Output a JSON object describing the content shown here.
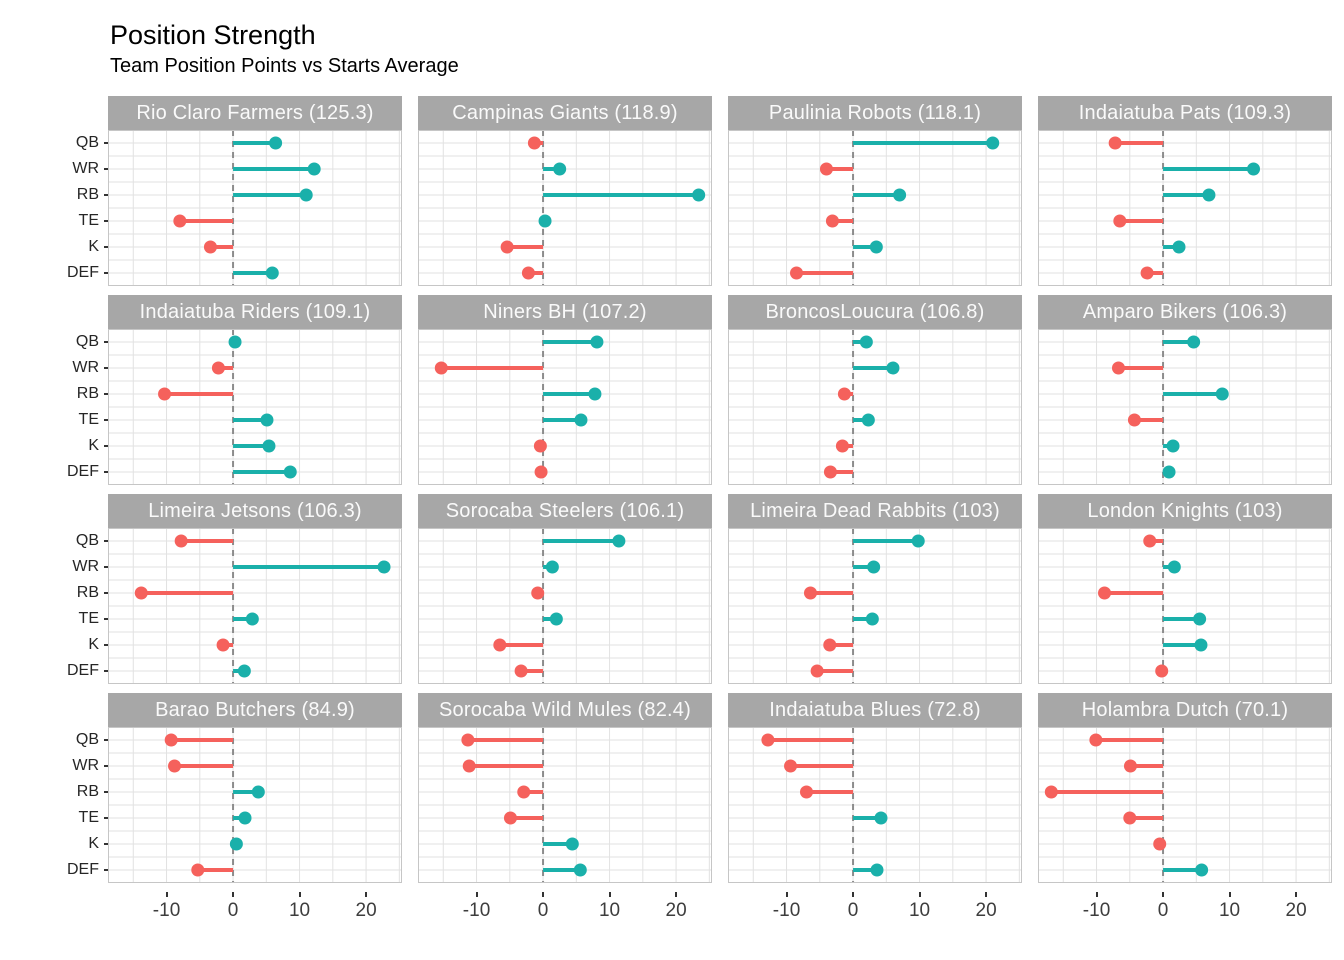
{
  "title": "Position Strength",
  "subtitle": "Team Position Points vs Starts Average",
  "colors": {
    "positive": "#1AB0AA",
    "negative": "#F5615C",
    "strip_bg": "#A7A7A7",
    "strip_text": "#FAFAFA",
    "grid": "#E2E2E2",
    "panel_border": "#C6C6C6",
    "zero_line": "#8C8C8C",
    "axis_text": "#3D3D3D"
  },
  "chart_data": {
    "type": "lollipop-facets",
    "title": "Position Strength",
    "subtitle": "Team Position Points vs Starts Average",
    "positions": [
      "QB",
      "WR",
      "RB",
      "TE",
      "K",
      "DEF"
    ],
    "x_ticks": [
      -10,
      0,
      10,
      20
    ],
    "x_tick_labels": [
      "-10",
      "0",
      "10",
      "20"
    ],
    "x_domain": [
      -18.8,
      25.4
    ],
    "grid": "on",
    "zero_reference_line": "dashed",
    "facets": [
      {
        "label": "Rio Claro Farmers (125.3)",
        "team": "Rio Claro Farmers",
        "total": 125.3,
        "values": [
          6.4,
          12.2,
          11.0,
          -8.0,
          -3.4,
          5.9
        ]
      },
      {
        "label": "Campinas Giants (118.9)",
        "team": "Campinas Giants",
        "total": 118.9,
        "values": [
          -1.3,
          2.5,
          23.4,
          0.3,
          -5.4,
          -2.2
        ]
      },
      {
        "label": "Paulinia Robots (118.1)",
        "team": "Paulinia Robots",
        "total": 118.1,
        "values": [
          21.0,
          -4.0,
          7.0,
          -3.1,
          3.5,
          -8.5
        ]
      },
      {
        "label": "Indaiatuba Pats (109.3)",
        "team": "Indaiatuba Pats",
        "total": 109.3,
        "values": [
          -7.2,
          13.6,
          6.9,
          -6.5,
          2.4,
          -2.4
        ]
      },
      {
        "label": "Indaiatuba Riders (109.1)",
        "team": "Indaiatuba Riders",
        "total": 109.1,
        "values": [
          0.3,
          -2.2,
          -10.3,
          5.1,
          5.4,
          8.6
        ]
      },
      {
        "label": "Niners BH (107.2)",
        "team": "Niners BH",
        "total": 107.2,
        "values": [
          8.1,
          -15.3,
          7.8,
          5.7,
          -0.4,
          -0.3
        ]
      },
      {
        "label": "BroncosLoucura (106.8)",
        "team": "BroncosLoucura",
        "total": 106.8,
        "values": [
          2.0,
          6.0,
          -1.3,
          2.3,
          -1.6,
          -3.4
        ]
      },
      {
        "label": "Amparo Bikers (106.3)",
        "team": "Amparo Bikers",
        "total": 106.3,
        "values": [
          4.6,
          -6.7,
          8.9,
          -4.3,
          1.5,
          0.9
        ]
      },
      {
        "label": "Limeira Jetsons (106.3)",
        "team": "Limeira Jetsons",
        "total": 106.3,
        "values": [
          -7.8,
          22.7,
          -13.8,
          2.9,
          -1.5,
          1.7
        ]
      },
      {
        "label": "Sorocaba Steelers (106.1)",
        "team": "Sorocaba Steelers",
        "total": 106.1,
        "values": [
          11.4,
          1.4,
          -0.8,
          2.0,
          -6.5,
          -3.3
        ]
      },
      {
        "label": "Limeira Dead Rabbits (103)",
        "team": "Limeira Dead Rabbits",
        "total": 103,
        "values": [
          9.8,
          3.1,
          -6.4,
          2.9,
          -3.5,
          -5.4
        ]
      },
      {
        "label": "London Knights (103)",
        "team": "London Knights",
        "total": 103,
        "values": [
          -2.0,
          1.7,
          -8.8,
          5.5,
          5.7,
          -0.2
        ]
      },
      {
        "label": "Barao Butchers (84.9)",
        "team": "Barao Butchers",
        "total": 84.9,
        "values": [
          -9.3,
          -8.8,
          3.8,
          1.8,
          0.5,
          -5.3
        ]
      },
      {
        "label": "Sorocaba Wild Mules (82.4)",
        "team": "Sorocaba Wild Mules",
        "total": 82.4,
        "values": [
          -11.3,
          -11.1,
          -2.9,
          -4.9,
          4.4,
          5.6
        ]
      },
      {
        "label": "Indaiatuba Blues (72.8)",
        "team": "Indaiatuba Blues",
        "total": 72.8,
        "values": [
          -12.8,
          -9.4,
          -7.0,
          4.2,
          null,
          3.6
        ]
      },
      {
        "label": "Holambra Dutch (70.1)",
        "team": "Holambra Dutch",
        "total": 70.1,
        "values": [
          -10.1,
          -4.9,
          -16.8,
          -5.0,
          -0.5,
          5.8
        ]
      }
    ]
  }
}
